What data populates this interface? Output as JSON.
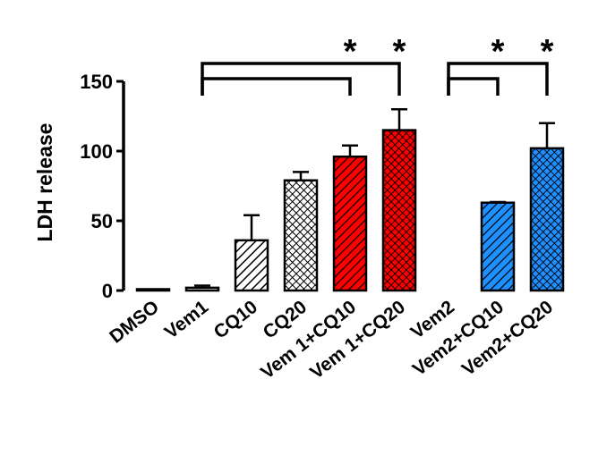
{
  "chart_data": {
    "type": "bar",
    "ylabel": "LDH release",
    "xlabel": "",
    "title": "",
    "ylim": [
      0,
      150
    ],
    "yticks": [
      "0",
      "50",
      "100",
      "150"
    ],
    "grid": false,
    "categories": [
      "DMSO",
      "Vem1",
      "CQ10",
      "CQ20",
      "Vem 1+CQ10",
      "Vem 1+CQ20",
      "Vem2",
      "Vem2+CQ10",
      "Vem2+CQ20"
    ],
    "values": [
      0.5,
      2,
      36,
      79,
      96,
      115,
      0,
      63,
      102
    ],
    "errors": [
      0.3,
      1.5,
      18,
      6,
      8,
      15,
      0,
      0.5,
      18
    ],
    "fills": [
      "none",
      "none",
      "diagonal-hatch",
      "crosshatch",
      "diagonal-hatch",
      "crosshatch",
      "none",
      "diagonal-hatch",
      "crosshatch"
    ],
    "colors": [
      "#ffffff",
      "#ffffff",
      "#ffffff",
      "#ffffff",
      "#ff0000",
      "#ff0000",
      "#ffffff",
      "#1e90ff",
      "#1e90ff"
    ],
    "significance": [
      {
        "from": "Vem1",
        "to": "Vem 1+CQ10",
        "label": "*"
      },
      {
        "from": "Vem1",
        "to": "Vem 1+CQ20",
        "label": "*"
      },
      {
        "from": "Vem2",
        "to": "Vem2+CQ10",
        "label": "*"
      },
      {
        "from": "Vem2",
        "to": "Vem2+CQ20",
        "label": "*"
      }
    ]
  }
}
